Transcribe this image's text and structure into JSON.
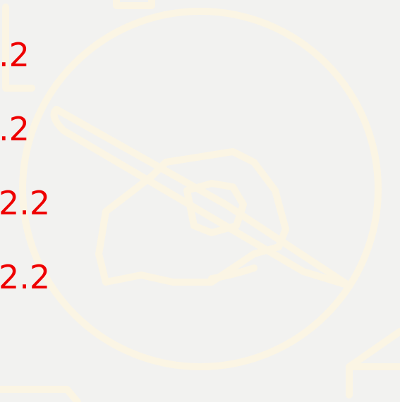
{
  "lines": [
    ".2",
    ".2",
    "2.2",
    "2.2"
  ]
}
